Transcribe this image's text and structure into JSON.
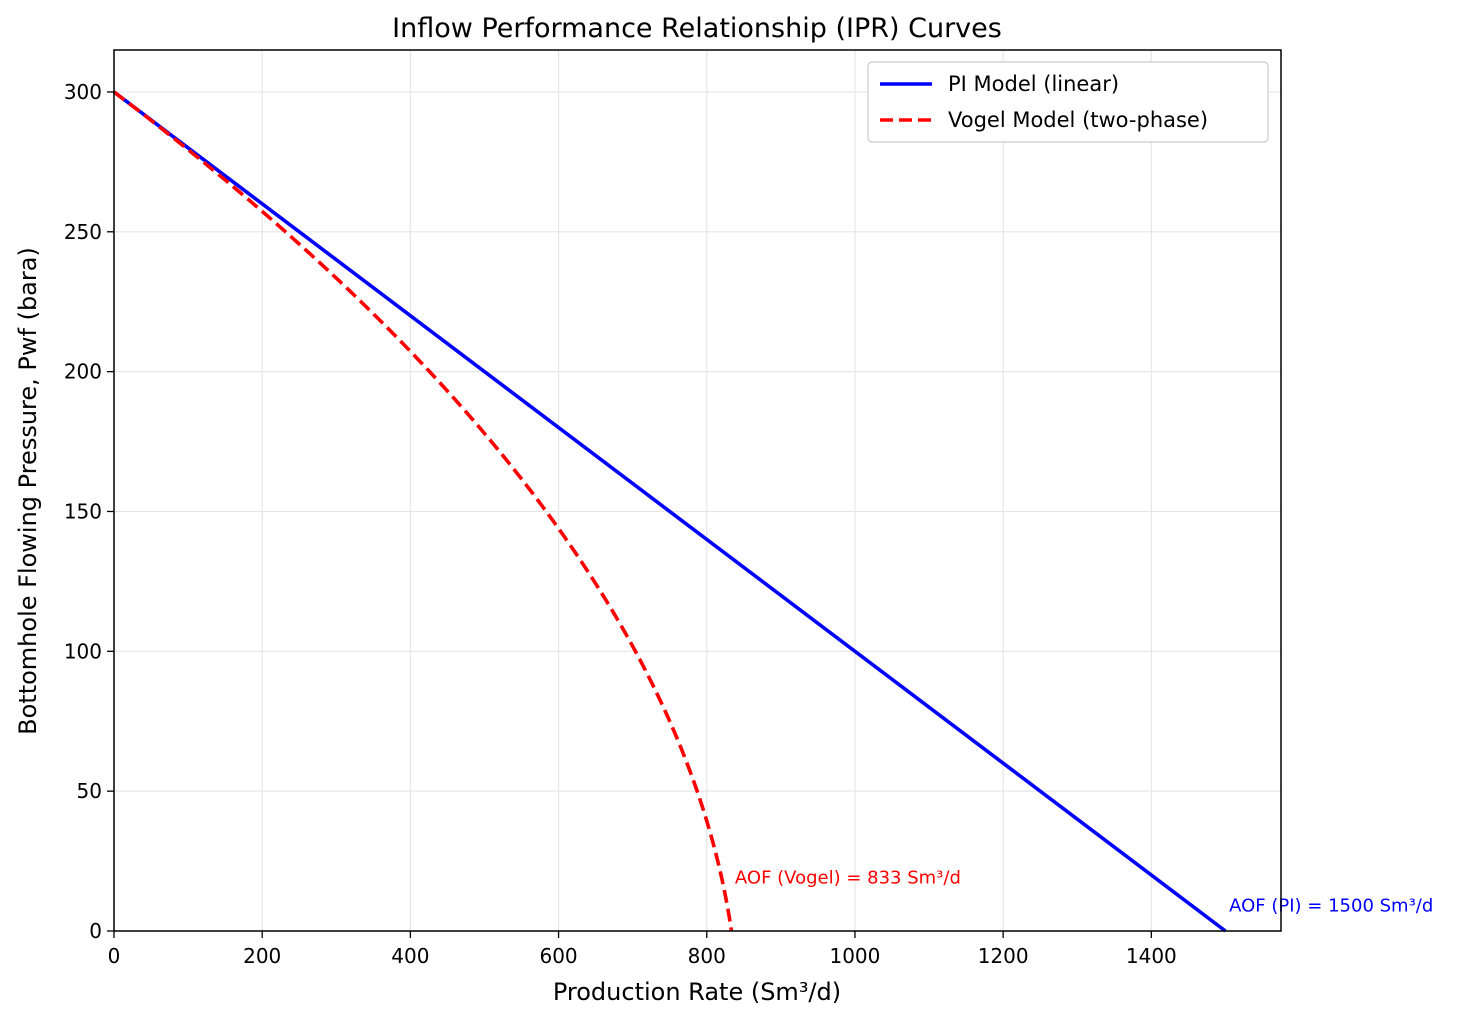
{
  "chart_data": {
    "type": "line",
    "title": "Inflow Performance Relationship (IPR) Curves",
    "xlabel": "Production Rate (Sm³/d)",
    "ylabel": "Bottomhole Flowing Pressure, Pwf (bara)",
    "xlim": [
      0,
      1575
    ],
    "ylim": [
      0,
      315
    ],
    "xticks": [
      0,
      200,
      400,
      600,
      800,
      1000,
      1200,
      1400
    ],
    "yticks": [
      0,
      50,
      100,
      150,
      200,
      250,
      300
    ],
    "grid": true,
    "legend_position": "upper right",
    "reservoir_pressure": 300,
    "series": [
      {
        "name": "PI Model (linear)",
        "color": "#0000ff",
        "style": "solid",
        "model": "linear",
        "aof": 1500,
        "points": [
          [
            0,
            300
          ],
          [
            1500,
            0
          ]
        ]
      },
      {
        "name": "Vogel Model (two-phase)",
        "color": "#ff0000",
        "style": "dashed",
        "model": "vogel",
        "aof": 833.33,
        "points": [
          [
            0,
            300
          ],
          [
            200,
            261
          ],
          [
            400,
            207
          ],
          [
            600,
            142
          ],
          [
            700,
            101
          ],
          [
            800,
            46
          ],
          [
            833,
            0
          ]
        ]
      }
    ],
    "annotations": [
      {
        "text": "AOF (Vogel) = 833 Sm³/d",
        "x": 838,
        "y": 17,
        "color": "#ff0000"
      },
      {
        "text": "AOF (PI) = 1500 Sm³/d",
        "x": 1505,
        "y": 7,
        "color": "#0000ff"
      }
    ]
  }
}
